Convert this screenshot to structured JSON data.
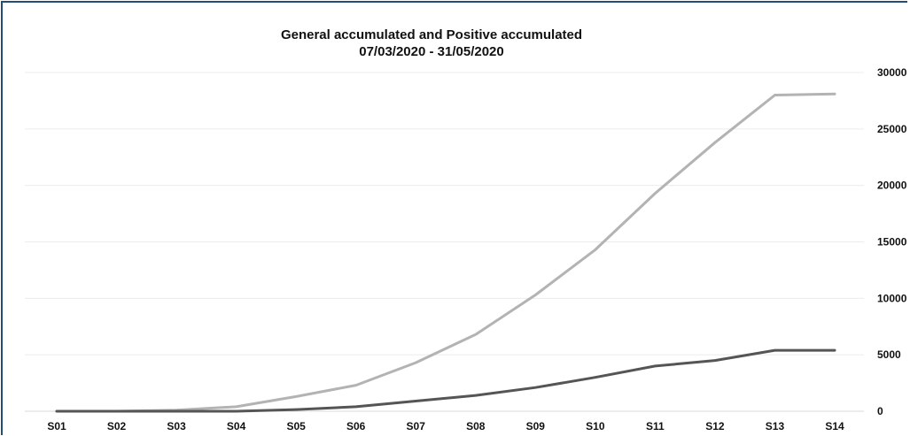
{
  "chart_data": {
    "type": "line",
    "title": "General accumulated and Positive accumulated",
    "subtitle": "07/03/2020 - 31/05/2020",
    "xlabel": "",
    "ylabel": "",
    "categories": [
      "S01",
      "S02",
      "S03",
      "S04",
      "S05",
      "S06",
      "S07",
      "S08",
      "S09",
      "S10",
      "S11",
      "S12",
      "S13",
      "S14"
    ],
    "series": [
      {
        "color": "#b3b3b3",
        "values": [
          0,
          0,
          100,
          400,
          1300,
          2300,
          4300,
          6800,
          10300,
          14300,
          19300,
          23800,
          28000,
          28100
        ]
      },
      {
        "color": "#555555",
        "values": [
          0,
          0,
          0,
          0,
          150,
          400,
          900,
          1400,
          2100,
          3000,
          4000,
          4500,
          5400,
          5400
        ]
      }
    ],
    "ylim": [
      0,
      30000
    ],
    "yticks": [
      "0",
      "5000",
      "10000",
      "15000",
      "20000",
      "25000",
      "30000"
    ],
    "ytick_values": [
      0,
      5000,
      10000,
      15000,
      20000,
      25000,
      30000
    ],
    "y_axis_side": "right",
    "grid": true,
    "legend": "none"
  },
  "colors": {
    "frame_border": "#1f4e79",
    "gridline": "#ececec",
    "axis_line": "#d9d9d9"
  }
}
